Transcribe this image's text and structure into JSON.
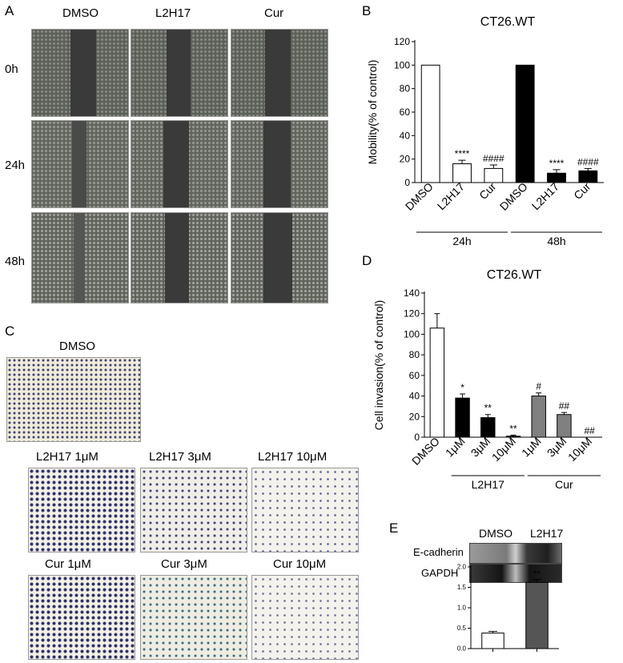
{
  "panels": {
    "A": "A",
    "B": "B",
    "C": "C",
    "D": "D",
    "E": "E"
  },
  "panelA": {
    "columns": [
      "DMSO",
      "L2H17",
      "Cur"
    ],
    "rows": [
      "0h",
      "24h",
      "48h"
    ]
  },
  "panelC": {
    "top_label": "DMSO",
    "row1": [
      "L2H17 1μM",
      "L2H17 3μM",
      "L2H17 10μM"
    ],
    "row2": [
      "Cur  1μM",
      "Cur 3μM",
      "Cur 10μM"
    ]
  },
  "panelE": {
    "lanes": [
      "DMSO",
      "L2H17"
    ],
    "proteins": [
      "E-cadherin",
      "GAPDH"
    ]
  },
  "chart_data": [
    {
      "id": "B",
      "type": "bar",
      "title": "CT26.WT",
      "ylabel": "Mobility(% of control)",
      "ylim": [
        0,
        120
      ],
      "yticks": [
        0,
        20,
        40,
        60,
        80,
        100,
        120
      ],
      "categories": [
        "DMSO",
        "L2H17",
        "Cur",
        "DMSO",
        "L2H17",
        "Cur"
      ],
      "values": [
        100,
        16,
        12,
        100,
        8,
        10
      ],
      "errors": [
        0,
        3,
        3,
        0,
        3,
        2
      ],
      "fills": [
        "#ffffff",
        "#ffffff",
        "#ffffff",
        "#000000",
        "#000000",
        "#000000"
      ],
      "annotations": [
        "",
        "****",
        "####",
        "",
        "****",
        "####"
      ],
      "groups": [
        {
          "label": "24h",
          "from": 0,
          "to": 2
        },
        {
          "label": "48h",
          "from": 3,
          "to": 5
        }
      ]
    },
    {
      "id": "D",
      "type": "bar",
      "title": "CT26.WT",
      "ylabel": "Cell invasion(% of control)",
      "ylim": [
        0,
        140
      ],
      "yticks": [
        0,
        20,
        40,
        60,
        80,
        100,
        120,
        140
      ],
      "categories": [
        "DMSO",
        "1μM",
        "3μM",
        "10μM",
        "1μM",
        "3μM",
        "10μM"
      ],
      "values": [
        106,
        38,
        19,
        1,
        40,
        22,
        0
      ],
      "errors": [
        14,
        4,
        3,
        1,
        3,
        2,
        0
      ],
      "fills": [
        "#ffffff",
        "#000000",
        "#000000",
        "#000000",
        "#808080",
        "#808080",
        "#808080"
      ],
      "annotations": [
        "",
        "*",
        "**",
        "**",
        "#",
        "##",
        "##"
      ],
      "groups": [
        {
          "label": "L2H17",
          "from": 1,
          "to": 3
        },
        {
          "label": "Cur",
          "from": 4,
          "to": 6
        }
      ]
    },
    {
      "id": "E",
      "type": "bar",
      "title": "",
      "ylabel": "",
      "ylim": [
        0,
        2.0
      ],
      "yticks": [
        "0.0",
        "0.5",
        "1.0",
        "1.5",
        "2.0"
      ],
      "categories": [
        "DMSO",
        "L2H17"
      ],
      "values": [
        0.38,
        1.62
      ],
      "errors": [
        0.04,
        0.07
      ],
      "fills": [
        "#ffffff",
        "#555555"
      ],
      "annotations": [
        "",
        "**"
      ]
    }
  ]
}
